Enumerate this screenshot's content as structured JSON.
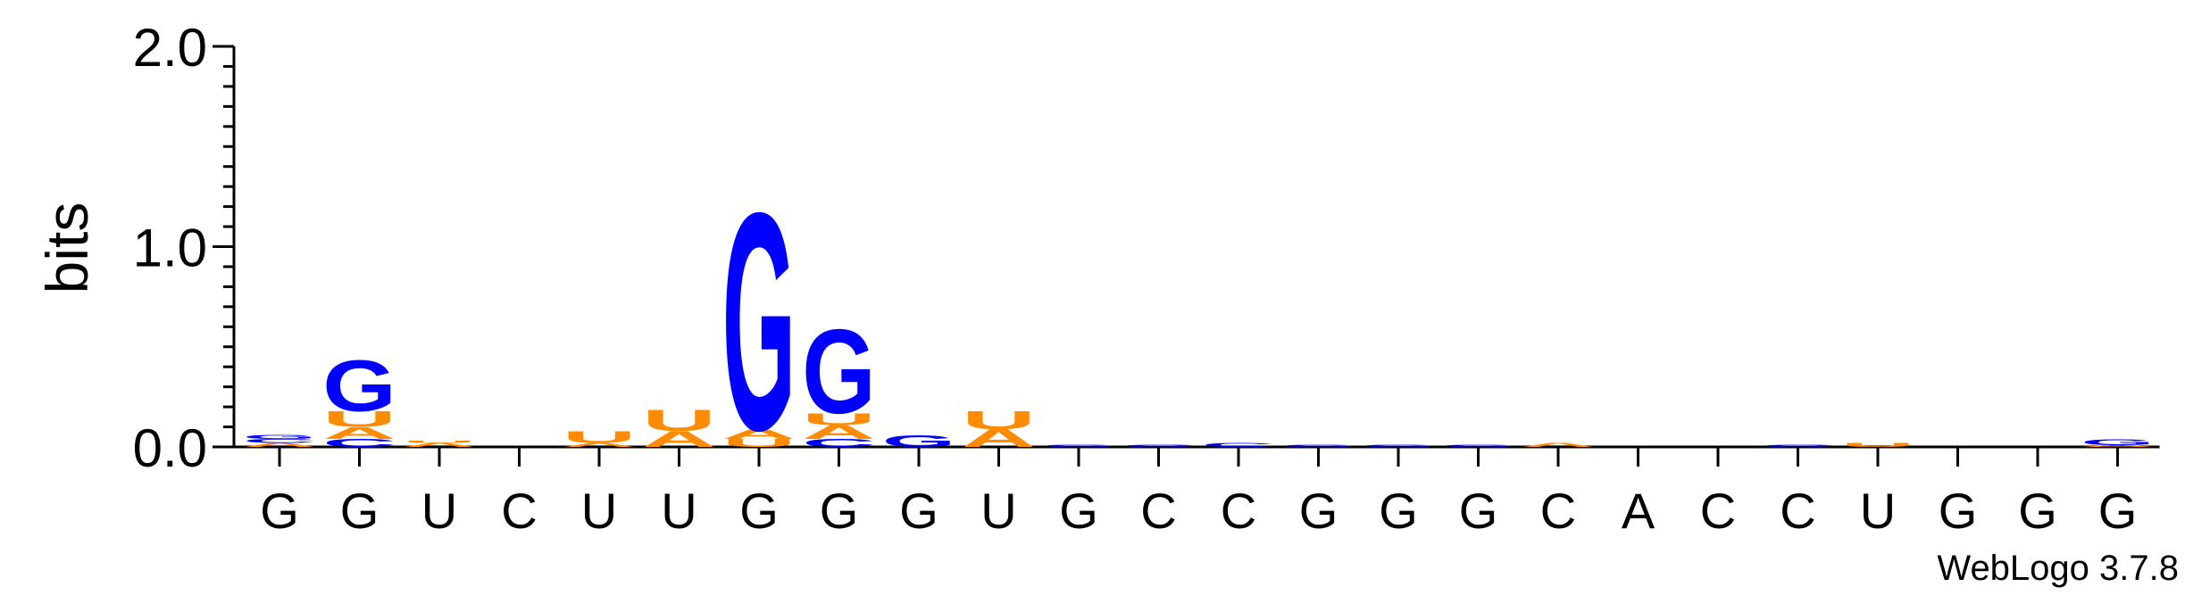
{
  "chart_data": {
    "type": "sequence-logo",
    "ylabel": "bits",
    "ylim": [
      0,
      2.0
    ],
    "y_ticks": [
      "0.0",
      "1.0",
      "2.0"
    ],
    "x_labels": [
      "G",
      "G",
      "U",
      "C",
      "U",
      "U",
      "G",
      "G",
      "G",
      "U",
      "G",
      "C",
      "C",
      "G",
      "G",
      "G",
      "C",
      "A",
      "C",
      "C",
      "U",
      "G",
      "G",
      "G"
    ],
    "colors": {
      "G": "#0000ff",
      "C": "#0000ff",
      "A": "#ff8c00",
      "U": "#ff8c00"
    },
    "columns": [
      [
        {
          "l": "A",
          "h": 0.02
        },
        {
          "l": "C",
          "h": 0.02
        },
        {
          "l": "G",
          "h": 0.02
        }
      ],
      [
        {
          "l": "C",
          "h": 0.04
        },
        {
          "l": "A",
          "h": 0.06
        },
        {
          "l": "U",
          "h": 0.08
        },
        {
          "l": "G",
          "h": 0.26
        }
      ],
      [
        {
          "l": "A",
          "h": 0.02
        },
        {
          "l": "U",
          "h": 0.01
        }
      ],
      [],
      [
        {
          "l": "A",
          "h": 0.02
        },
        {
          "l": "U",
          "h": 0.06
        }
      ],
      [
        {
          "l": "A",
          "h": 0.08
        },
        {
          "l": "U",
          "h": 0.11
        }
      ],
      [
        {
          "l": "U",
          "h": 0.04
        },
        {
          "l": "A",
          "h": 0.05
        },
        {
          "l": "G",
          "h": 1.11
        }
      ],
      [
        {
          "l": "C",
          "h": 0.04
        },
        {
          "l": "A",
          "h": 0.07
        },
        {
          "l": "U",
          "h": 0.06
        },
        {
          "l": "G",
          "h": 0.43
        }
      ],
      [
        {
          "l": "G",
          "h": 0.06
        }
      ],
      [
        {
          "l": "A",
          "h": 0.09
        },
        {
          "l": "U",
          "h": 0.09
        }
      ],
      [
        {
          "l": "G",
          "h": 0.01
        }
      ],
      [
        {
          "l": "C",
          "h": 0.01
        }
      ],
      [
        {
          "l": "C",
          "h": 0.02
        }
      ],
      [
        {
          "l": "G",
          "h": 0.01
        }
      ],
      [
        {
          "l": "G",
          "h": 0.01
        }
      ],
      [
        {
          "l": "G",
          "h": 0.01
        }
      ],
      [
        {
          "l": "A",
          "h": 0.02
        }
      ],
      [],
      [],
      [
        {
          "l": "C",
          "h": 0.01
        }
      ],
      [
        {
          "l": "U",
          "h": 0.02
        }
      ],
      [],
      [],
      [
        {
          "l": "A",
          "h": 0.01
        },
        {
          "l": "G",
          "h": 0.03
        }
      ]
    ]
  },
  "footer": {
    "credit": "WebLogo 3.7.8"
  }
}
